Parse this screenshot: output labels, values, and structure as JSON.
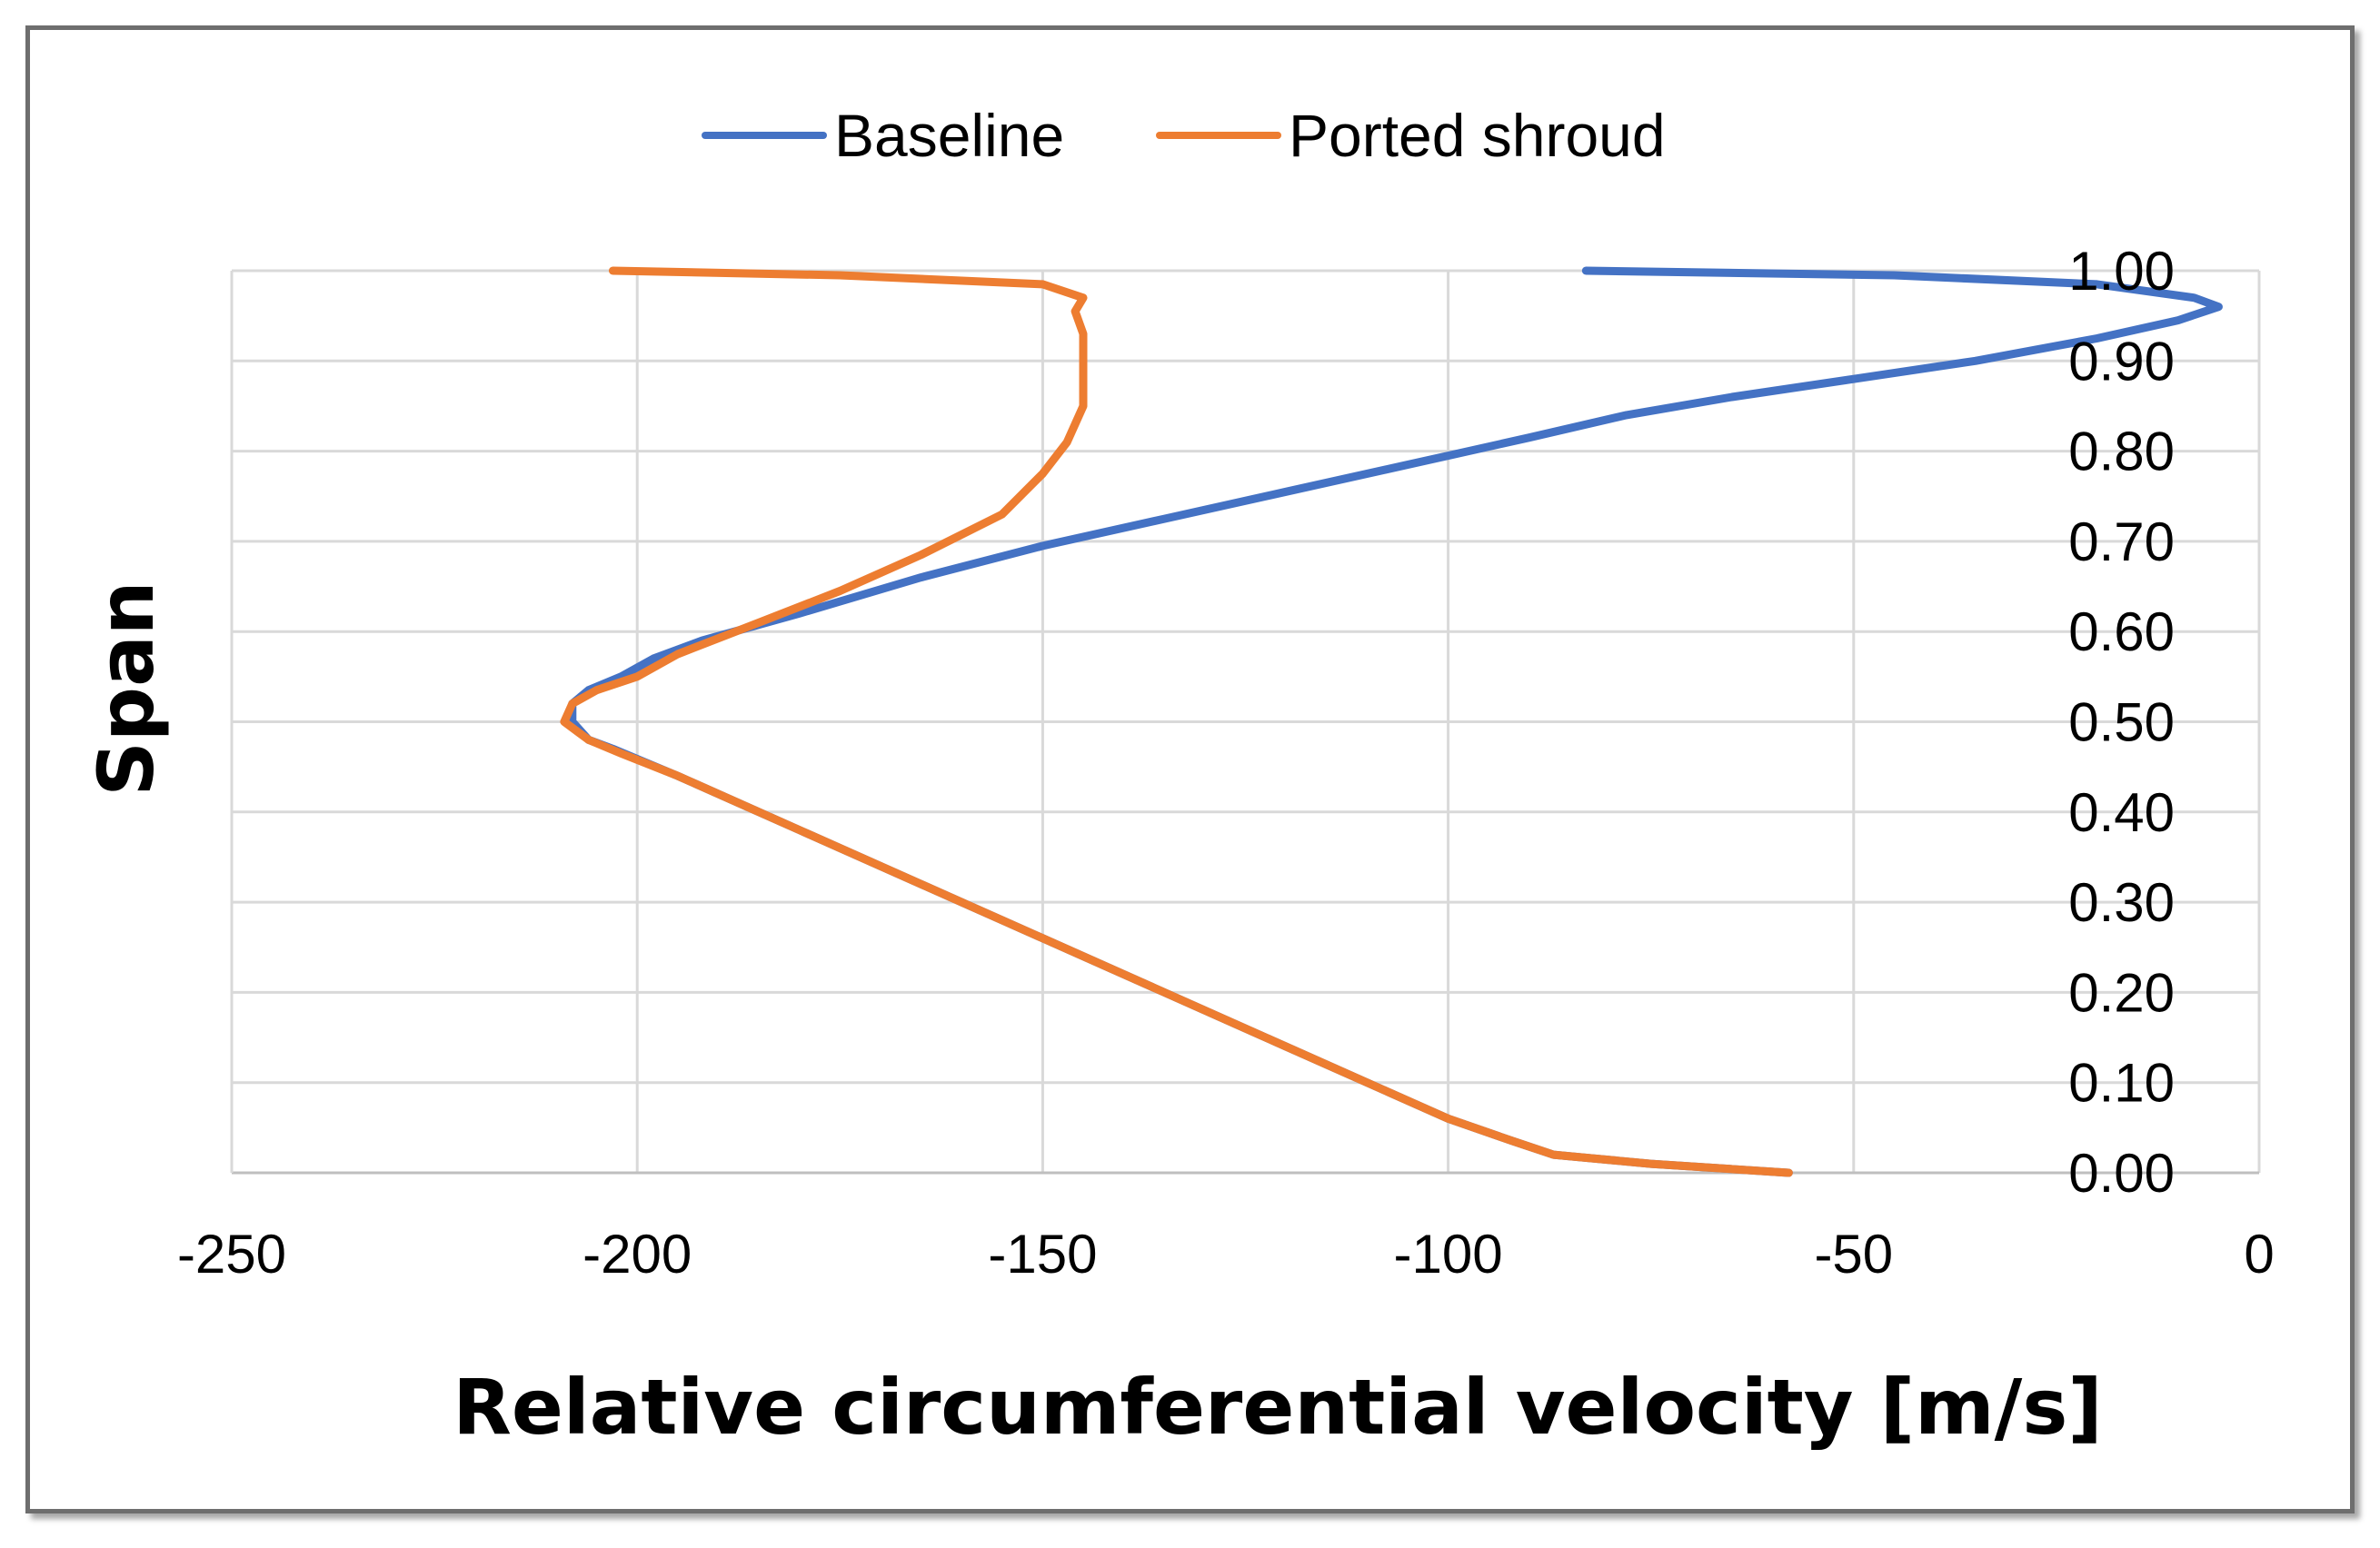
{
  "chart_data": {
    "type": "line",
    "title": "",
    "xlabel": "Relative circumferential velocity [m/s]",
    "ylabel": "Span",
    "xlim": [
      -250,
      0
    ],
    "ylim": [
      0,
      1
    ],
    "grid": true,
    "legend_position": "top-center",
    "x_ticks": [
      {
        "value": -250,
        "label": "-250"
      },
      {
        "value": -200,
        "label": "-200"
      },
      {
        "value": -150,
        "label": "-150"
      },
      {
        "value": -100,
        "label": "-100"
      },
      {
        "value": -50,
        "label": "-50"
      },
      {
        "value": 0,
        "label": "0"
      }
    ],
    "y_ticks": [
      {
        "value": 0.0,
        "label": "0.00"
      },
      {
        "value": 0.1,
        "label": "0.10"
      },
      {
        "value": 0.2,
        "label": "0.20"
      },
      {
        "value": 0.3,
        "label": "0.30"
      },
      {
        "value": 0.4,
        "label": "0.40"
      },
      {
        "value": 0.5,
        "label": "0.50"
      },
      {
        "value": 0.6,
        "label": "0.60"
      },
      {
        "value": 0.7,
        "label": "0.70"
      },
      {
        "value": 0.8,
        "label": "0.80"
      },
      {
        "value": 0.9,
        "label": "0.90"
      },
      {
        "value": 1.0,
        "label": "1.00"
      }
    ],
    "series": [
      {
        "name": "Baseline",
        "color": "#4472C4",
        "points": [
          [
            -58,
            0.0
          ],
          [
            -75,
            0.01
          ],
          [
            -87,
            0.02
          ],
          [
            -92,
            0.035
          ],
          [
            -100,
            0.06
          ],
          [
            -120,
            0.14
          ],
          [
            -140,
            0.22
          ],
          [
            -160,
            0.3
          ],
          [
            -180,
            0.38
          ],
          [
            -195,
            0.44
          ],
          [
            -203,
            0.47
          ],
          [
            -206,
            0.48
          ],
          [
            -208,
            0.5
          ],
          [
            -208,
            0.52
          ],
          [
            -206,
            0.535
          ],
          [
            -202,
            0.55
          ],
          [
            -198,
            0.57
          ],
          [
            -192,
            0.59
          ],
          [
            -180,
            0.62
          ],
          [
            -165,
            0.66
          ],
          [
            -150,
            0.695
          ],
          [
            -135,
            0.725
          ],
          [
            -120,
            0.755
          ],
          [
            -100,
            0.795
          ],
          [
            -90,
            0.815
          ],
          [
            -78,
            0.84
          ],
          [
            -65,
            0.86
          ],
          [
            -50,
            0.88
          ],
          [
            -35,
            0.9
          ],
          [
            -20,
            0.925
          ],
          [
            -10,
            0.945
          ],
          [
            -5,
            0.96
          ],
          [
            -8,
            0.97
          ],
          [
            -20,
            0.985
          ],
          [
            -45,
            0.995
          ],
          [
            -83,
            1.0
          ]
        ]
      },
      {
        "name": "Ported shroud",
        "color": "#ED7D31",
        "points": [
          [
            -58,
            0.0
          ],
          [
            -75,
            0.01
          ],
          [
            -87,
            0.02
          ],
          [
            -92,
            0.035
          ],
          [
            -100,
            0.06
          ],
          [
            -120,
            0.14
          ],
          [
            -140,
            0.22
          ],
          [
            -160,
            0.3
          ],
          [
            -180,
            0.38
          ],
          [
            -195,
            0.44
          ],
          [
            -202,
            0.465
          ],
          [
            -206,
            0.48
          ],
          [
            -209,
            0.5
          ],
          [
            -208,
            0.52
          ],
          [
            -205,
            0.535
          ],
          [
            -200,
            0.55
          ],
          [
            -195,
            0.575
          ],
          [
            -185,
            0.61
          ],
          [
            -175,
            0.645
          ],
          [
            -165,
            0.685
          ],
          [
            -155,
            0.73
          ],
          [
            -150,
            0.775
          ],
          [
            -147,
            0.81
          ],
          [
            -145,
            0.85
          ],
          [
            -145,
            0.89
          ],
          [
            -145,
            0.93
          ],
          [
            -146,
            0.955
          ],
          [
            -145,
            0.97
          ],
          [
            -150,
            0.985
          ],
          [
            -175,
            0.995
          ],
          [
            -203,
            1.0
          ]
        ]
      }
    ]
  }
}
